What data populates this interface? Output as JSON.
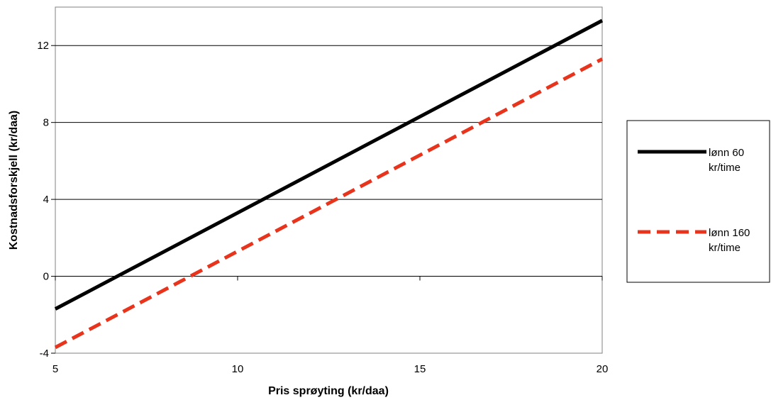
{
  "chart_data": {
    "type": "line",
    "title": "",
    "xlabel": "Pris sprøyting (kr/daa)",
    "ylabel": "Kostnadsforskjell (kr/daa)",
    "xlim": [
      5,
      20
    ],
    "ylim": [
      -4,
      14
    ],
    "xticks": [
      5,
      10,
      15,
      20
    ],
    "yticks": [
      -4,
      0,
      4,
      8,
      12
    ],
    "grid": "horizontal",
    "legend_position": "right",
    "series": [
      {
        "name": "lønn 60 kr/time",
        "legend_lines": [
          "lønn 60",
          "kr/time"
        ],
        "color": "#000000",
        "style": "solid",
        "x": [
          5,
          20
        ],
        "y": [
          -1.7,
          13.3
        ]
      },
      {
        "name": "lønn 160 kr/time",
        "legend_lines": [
          "lønn 160",
          "kr/time"
        ],
        "color": "#e8341c",
        "style": "dashed",
        "x": [
          5,
          20
        ],
        "y": [
          -3.7,
          11.3
        ]
      }
    ]
  }
}
